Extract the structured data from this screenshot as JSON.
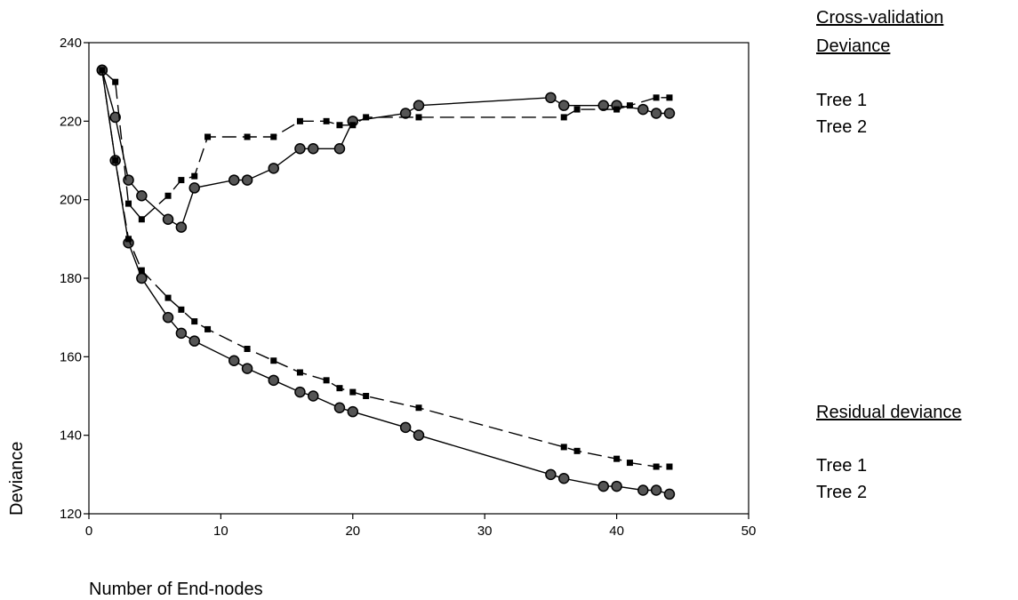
{
  "legend": {
    "cv_heading_line1": "Cross-validation",
    "cv_heading_line2": "Deviance",
    "cv_tree1": "Tree 1",
    "cv_tree2": "Tree 2",
    "rd_heading": "Residual deviance",
    "rd_tree1": "Tree 1",
    "rd_tree2": "Tree 2"
  },
  "chart_data": {
    "type": "line",
    "xlabel": "Number of End-nodes",
    "ylabel": "Deviance",
    "xlim": [
      0,
      50
    ],
    "ylim": [
      120,
      240
    ],
    "xticks": [
      0,
      10,
      20,
      30,
      40,
      50
    ],
    "yticks": [
      120,
      140,
      160,
      180,
      200,
      220,
      240
    ],
    "grid": false,
    "series": [
      {
        "name": "Cross-validation Deviance — Tree 1",
        "line": "solid",
        "marker": "circle",
        "color": "#000000",
        "x": [
          1,
          2,
          3,
          4,
          6,
          7,
          8,
          11,
          12,
          14,
          16,
          17,
          19,
          20,
          24,
          25,
          35,
          36,
          39,
          40,
          42,
          43,
          44
        ],
        "y": [
          233,
          221,
          205,
          201,
          195,
          193,
          203,
          205,
          205,
          208,
          213,
          213,
          213,
          220,
          222,
          224,
          226,
          224,
          224,
          224,
          223,
          222,
          222
        ]
      },
      {
        "name": "Cross-validation Deviance — Tree 2",
        "line": "dashed",
        "marker": "square",
        "color": "#000000",
        "x": [
          1,
          2,
          3,
          4,
          6,
          7,
          8,
          9,
          12,
          14,
          16,
          18,
          19,
          20,
          21,
          25,
          36,
          37,
          40,
          41,
          43,
          44
        ],
        "y": [
          233,
          230,
          199,
          195,
          201,
          205,
          206,
          216,
          216,
          216,
          220,
          220,
          219,
          219,
          221,
          221,
          221,
          223,
          223,
          224,
          226,
          226
        ]
      },
      {
        "name": "Residual deviance — Tree 1",
        "line": "solid",
        "marker": "circle",
        "color": "#000000",
        "x": [
          1,
          2,
          3,
          4,
          6,
          7,
          8,
          11,
          12,
          14,
          16,
          17,
          19,
          20,
          24,
          25,
          35,
          36,
          39,
          40,
          42,
          43,
          44
        ],
        "y": [
          233,
          210,
          189,
          180,
          170,
          166,
          164,
          159,
          157,
          154,
          151,
          150,
          147,
          146,
          142,
          140,
          130,
          129,
          127,
          127,
          126,
          126,
          125
        ]
      },
      {
        "name": "Residual deviance — Tree 2",
        "line": "dashed",
        "marker": "square",
        "color": "#000000",
        "x": [
          1,
          2,
          3,
          4,
          6,
          7,
          8,
          9,
          12,
          14,
          16,
          18,
          19,
          20,
          21,
          25,
          36,
          37,
          40,
          41,
          43,
          44
        ],
        "y": [
          233,
          210,
          190,
          182,
          175,
          172,
          169,
          167,
          162,
          159,
          156,
          154,
          152,
          151,
          150,
          147,
          137,
          136,
          134,
          133,
          132,
          132
        ]
      }
    ]
  }
}
